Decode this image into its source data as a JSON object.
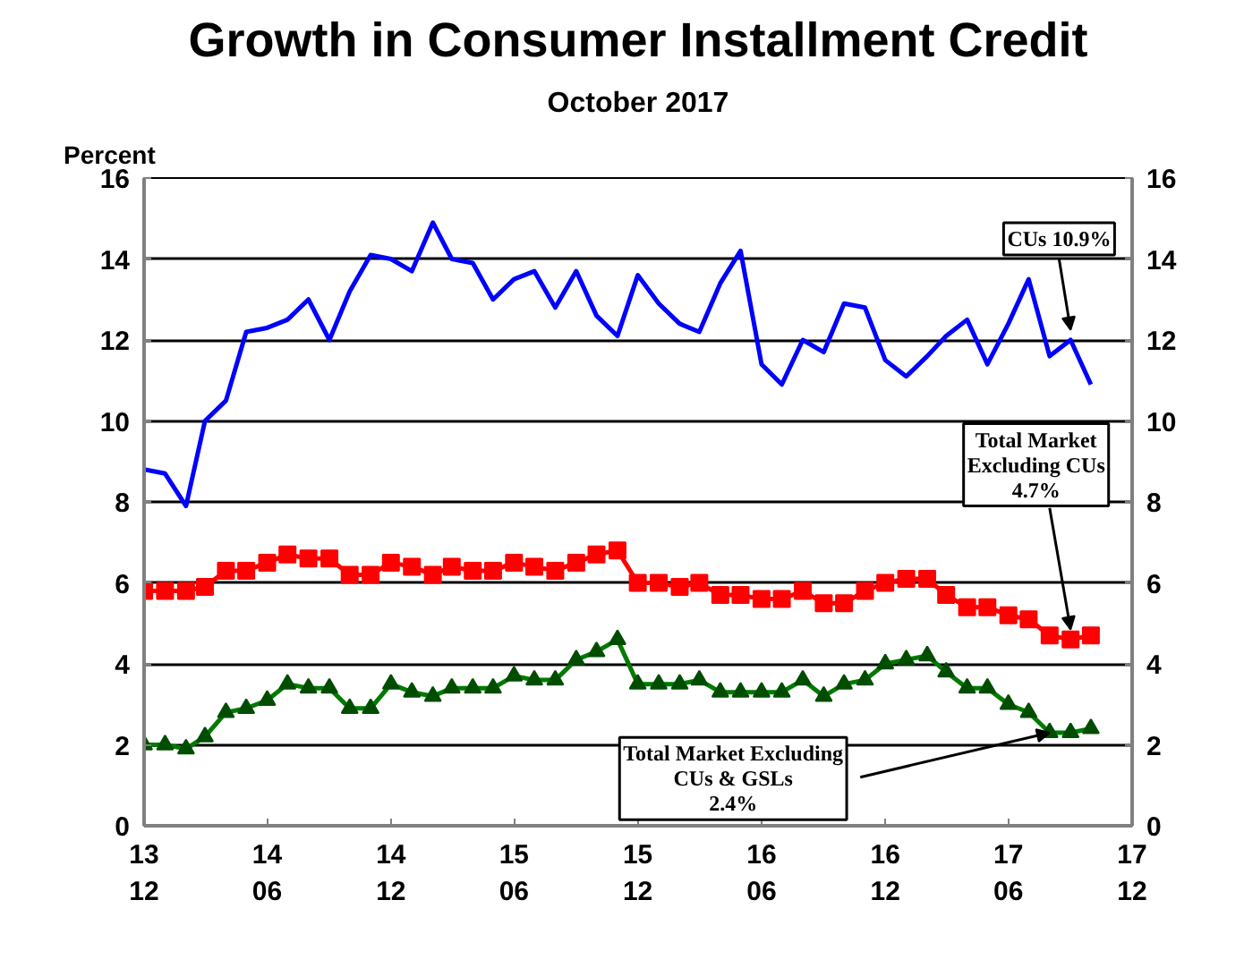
{
  "chart_data": {
    "type": "line",
    "title": "Growth in Consumer Installment Credit",
    "subtitle": "October 2017",
    "ylabel": "Percent",
    "x": [
      "2013-12",
      "2014-01",
      "2014-02",
      "2014-03",
      "2014-04",
      "2014-05",
      "2014-06",
      "2014-07",
      "2014-08",
      "2014-09",
      "2014-10",
      "2014-11",
      "2014-12",
      "2015-01",
      "2015-02",
      "2015-03",
      "2015-04",
      "2015-05",
      "2015-06",
      "2015-07",
      "2015-08",
      "2015-09",
      "2015-10",
      "2015-11",
      "2015-12",
      "2016-01",
      "2016-02",
      "2016-03",
      "2016-04",
      "2016-05",
      "2016-06",
      "2016-07",
      "2016-08",
      "2016-09",
      "2016-10",
      "2016-11",
      "2016-12",
      "2017-01",
      "2017-02",
      "2017-03",
      "2017-04",
      "2017-05",
      "2017-06",
      "2017-07",
      "2017-08",
      "2017-09",
      "2017-10"
    ],
    "series": [
      {
        "color": "#0000ff",
        "marker": "none",
        "values": [
          8.8,
          8.7,
          7.9,
          10.0,
          10.5,
          12.2,
          12.3,
          12.5,
          13.0,
          12.0,
          13.2,
          14.1,
          14.0,
          13.7,
          14.9,
          14.0,
          13.9,
          13.0,
          13.5,
          13.7,
          12.8,
          13.7,
          12.6,
          12.1,
          13.6,
          12.9,
          12.4,
          12.2,
          13.4,
          14.2,
          11.4,
          10.9,
          12.0,
          11.7,
          12.9,
          12.8,
          11.5,
          11.1,
          11.6,
          12.1,
          12.5,
          11.4,
          12.4,
          13.5,
          11.6,
          12.0,
          10.9
        ]
      },
      {
        "color": "#ff0000",
        "marker": "square",
        "values": [
          5.8,
          5.8,
          5.8,
          5.9,
          6.3,
          6.3,
          6.5,
          6.7,
          6.6,
          6.6,
          6.2,
          6.2,
          6.5,
          6.4,
          6.2,
          6.4,
          6.3,
          6.3,
          6.5,
          6.4,
          6.3,
          6.5,
          6.7,
          6.8,
          6.0,
          6.0,
          5.9,
          6.0,
          5.7,
          5.7,
          5.6,
          5.6,
          5.8,
          5.5,
          5.5,
          5.8,
          6.0,
          6.1,
          6.1,
          5.7,
          5.4,
          5.4,
          5.2,
          5.1,
          4.7,
          4.6,
          4.7
        ]
      },
      {
        "color": "#007a00",
        "marker": "triangle",
        "values": [
          2.0,
          2.0,
          1.9,
          2.2,
          2.8,
          2.9,
          3.1,
          3.5,
          3.4,
          3.4,
          2.9,
          2.9,
          3.5,
          3.3,
          3.2,
          3.4,
          3.4,
          3.4,
          3.7,
          3.6,
          3.6,
          4.1,
          4.3,
          4.6,
          3.5,
          3.5,
          3.5,
          3.6,
          3.3,
          3.3,
          3.3,
          3.3,
          3.6,
          3.2,
          3.5,
          3.6,
          4.0,
          4.1,
          4.2,
          3.8,
          3.4,
          3.4,
          3.0,
          2.8,
          2.3,
          2.3,
          2.4
        ]
      }
    ],
    "xlim": [
      "2013-12",
      "2017-12"
    ],
    "xticks": [
      {
        "value": "2013-12",
        "label": "13\n12"
      },
      {
        "value": "2014-06",
        "label": "14\n06"
      },
      {
        "value": "2014-12",
        "label": "14\n12"
      },
      {
        "value": "2015-06",
        "label": "15\n06"
      },
      {
        "value": "2015-12",
        "label": "15\n12"
      },
      {
        "value": "2016-06",
        "label": "16\n06"
      },
      {
        "value": "2016-12",
        "label": "16\n12"
      },
      {
        "value": "2017-06",
        "label": "17\n06"
      },
      {
        "value": "2017-12",
        "label": "17\n12"
      }
    ],
    "ylim": [
      0,
      16
    ],
    "yticks": [
      0,
      2,
      4,
      6,
      8,
      10,
      12,
      14,
      16
    ],
    "y2lim": [
      0,
      16
    ],
    "y2ticks": [
      0,
      2,
      4,
      6,
      8,
      10,
      12,
      14,
      16
    ],
    "grid": "y",
    "annotations": [
      {
        "text": "CUs 10.9%",
        "x": "2017-09",
        "y": 12.0
      },
      {
        "text": "Total Market\nExcluding CUs\n4.7%",
        "x": "2017-09",
        "y": 4.6
      },
      {
        "text": "Total Market Excluding\nCUs & GSLs\n2.4%",
        "x": "2017-08",
        "y": 2.3
      }
    ]
  }
}
